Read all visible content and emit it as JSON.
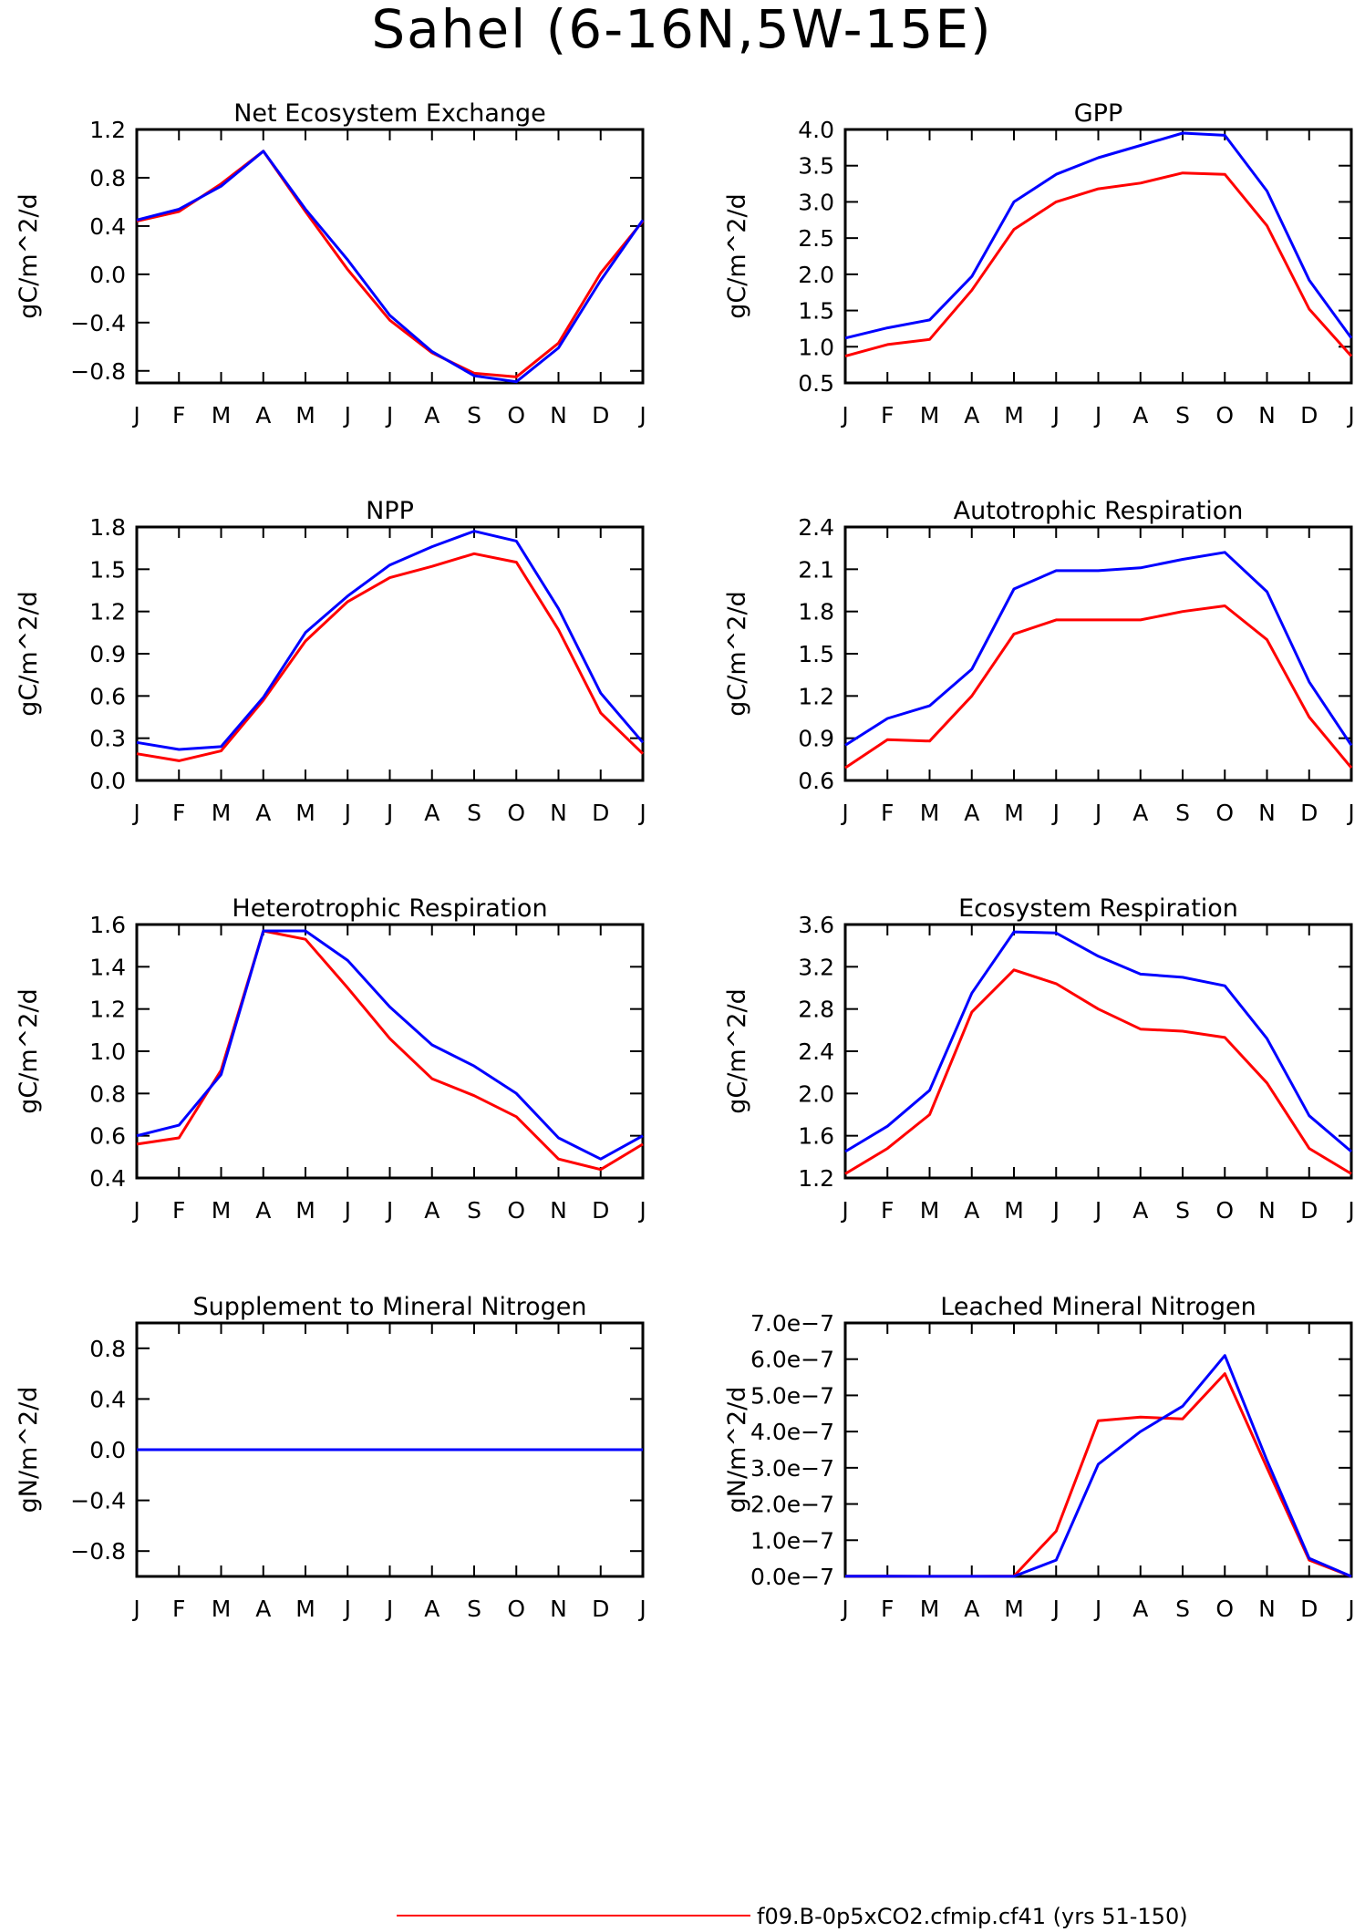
{
  "page_title": "Sahel (6-16N,5W-15E)",
  "legend": {
    "label": "f09.B-0p5xCO2.cfmip.cf41 (yrs 51-150)",
    "color": "#ff0000"
  },
  "series_colors": {
    "red": "#ff0000",
    "blue": "#0000ff"
  },
  "chart_data": [
    {
      "type": "line",
      "title": "Net Ecosystem Exchange",
      "ylabel": "gC/m^2/d",
      "categories": [
        "J",
        "F",
        "M",
        "A",
        "M",
        "J",
        "J",
        "A",
        "S",
        "O",
        "N",
        "D",
        "J"
      ],
      "yticks": [
        "-0.8",
        "-0.4",
        "0.0",
        "0.4",
        "0.8",
        "1.2"
      ],
      "ylim": [
        -0.9,
        1.2
      ],
      "series": [
        {
          "color": "red",
          "values": [
            0.44,
            0.52,
            0.75,
            1.02,
            0.52,
            0.04,
            -0.38,
            -0.65,
            -0.82,
            -0.85,
            -0.57,
            0.01,
            0.44
          ]
        },
        {
          "color": "blue",
          "values": [
            0.45,
            0.54,
            0.73,
            1.02,
            0.54,
            0.12,
            -0.34,
            -0.64,
            -0.84,
            -0.89,
            -0.61,
            -0.05,
            0.45
          ]
        }
      ]
    },
    {
      "type": "line",
      "title": "GPP",
      "ylabel": "gC/m^2/d",
      "categories": [
        "J",
        "F",
        "M",
        "A",
        "M",
        "J",
        "J",
        "A",
        "S",
        "O",
        "N",
        "D",
        "J"
      ],
      "yticks": [
        "0.5",
        "1.0",
        "1.5",
        "2.0",
        "2.5",
        "3.0",
        "3.5",
        "4.0"
      ],
      "ylim": [
        0.5,
        4.0
      ],
      "series": [
        {
          "color": "red",
          "values": [
            0.87,
            1.03,
            1.1,
            1.78,
            2.62,
            3.0,
            3.18,
            3.26,
            3.4,
            3.38,
            2.67,
            1.52,
            0.87
          ]
        },
        {
          "color": "blue",
          "values": [
            1.12,
            1.26,
            1.37,
            1.97,
            3.0,
            3.38,
            3.61,
            3.78,
            3.95,
            3.92,
            3.15,
            1.92,
            1.12
          ]
        }
      ]
    },
    {
      "type": "line",
      "title": "NPP",
      "ylabel": "gC/m^2/d",
      "categories": [
        "J",
        "F",
        "M",
        "A",
        "M",
        "J",
        "J",
        "A",
        "S",
        "O",
        "N",
        "D",
        "J"
      ],
      "yticks": [
        "0.0",
        "0.3",
        "0.6",
        "0.9",
        "1.2",
        "1.5",
        "1.8"
      ],
      "ylim": [
        0.0,
        1.8
      ],
      "series": [
        {
          "color": "red",
          "values": [
            0.19,
            0.14,
            0.21,
            0.57,
            0.99,
            1.27,
            1.44,
            1.52,
            1.61,
            1.55,
            1.07,
            0.48,
            0.19
          ]
        },
        {
          "color": "blue",
          "values": [
            0.27,
            0.22,
            0.24,
            0.59,
            1.05,
            1.31,
            1.53,
            1.66,
            1.77,
            1.7,
            1.22,
            0.62,
            0.27
          ]
        }
      ]
    },
    {
      "type": "line",
      "title": "Autotrophic Respiration",
      "ylabel": "gC/m^2/d",
      "categories": [
        "J",
        "F",
        "M",
        "A",
        "M",
        "J",
        "J",
        "A",
        "S",
        "O",
        "N",
        "D",
        "J"
      ],
      "yticks": [
        "0.6",
        "0.9",
        "1.2",
        "1.5",
        "1.8",
        "2.1",
        "2.4"
      ],
      "ylim": [
        0.6,
        2.4
      ],
      "series": [
        {
          "color": "red",
          "values": [
            0.69,
            0.89,
            0.88,
            1.2,
            1.64,
            1.74,
            1.74,
            1.74,
            1.8,
            1.84,
            1.6,
            1.05,
            0.69
          ]
        },
        {
          "color": "blue",
          "values": [
            0.85,
            1.04,
            1.13,
            1.39,
            1.96,
            2.09,
            2.09,
            2.11,
            2.17,
            2.22,
            1.94,
            1.3,
            0.85
          ]
        }
      ]
    },
    {
      "type": "line",
      "title": "Heterotrophic Respiration",
      "ylabel": "gC/m^2/d",
      "categories": [
        "J",
        "F",
        "M",
        "A",
        "M",
        "J",
        "J",
        "A",
        "S",
        "O",
        "N",
        "D",
        "J"
      ],
      "yticks": [
        "0.4",
        "0.6",
        "0.8",
        "1.0",
        "1.2",
        "1.4",
        "1.6"
      ],
      "ylim": [
        0.4,
        1.6
      ],
      "series": [
        {
          "color": "red",
          "values": [
            0.56,
            0.59,
            0.91,
            1.57,
            1.53,
            1.3,
            1.06,
            0.87,
            0.79,
            0.69,
            0.49,
            0.44,
            0.56
          ]
        },
        {
          "color": "blue",
          "values": [
            0.6,
            0.65,
            0.89,
            1.57,
            1.57,
            1.43,
            1.21,
            1.03,
            0.93,
            0.8,
            0.59,
            0.49,
            0.6
          ]
        }
      ]
    },
    {
      "type": "line",
      "title": "Ecosystem Respiration",
      "ylabel": "gC/m^2/d",
      "categories": [
        "J",
        "F",
        "M",
        "A",
        "M",
        "J",
        "J",
        "A",
        "S",
        "O",
        "N",
        "D",
        "J"
      ],
      "yticks": [
        "1.2",
        "1.6",
        "2.0",
        "2.4",
        "2.8",
        "3.2",
        "3.6"
      ],
      "ylim": [
        1.2,
        3.6
      ],
      "series": [
        {
          "color": "red",
          "values": [
            1.24,
            1.48,
            1.8,
            2.77,
            3.17,
            3.04,
            2.8,
            2.61,
            2.59,
            2.53,
            2.1,
            1.48,
            1.24
          ]
        },
        {
          "color": "blue",
          "values": [
            1.45,
            1.69,
            2.03,
            2.95,
            3.53,
            3.52,
            3.3,
            3.13,
            3.1,
            3.02,
            2.52,
            1.79,
            1.45
          ]
        }
      ]
    },
    {
      "type": "line",
      "title": "Supplement to Mineral Nitrogen",
      "ylabel": "gN/m^2/d",
      "categories": [
        "J",
        "F",
        "M",
        "A",
        "M",
        "J",
        "J",
        "A",
        "S",
        "O",
        "N",
        "D",
        "J"
      ],
      "yticks": [
        "-0.8",
        "-0.4",
        "0.0",
        "0.4",
        "0.8"
      ],
      "ylim": [
        -1.0,
        1.0
      ],
      "series": [
        {
          "color": "red",
          "values": [
            0,
            0,
            0,
            0,
            0,
            0,
            0,
            0,
            0,
            0,
            0,
            0,
            0
          ]
        },
        {
          "color": "blue",
          "values": [
            0,
            0,
            0,
            0,
            0,
            0,
            0,
            0,
            0,
            0,
            0,
            0,
            0
          ]
        }
      ]
    },
    {
      "type": "line",
      "title": "Leached Mineral Nitrogen",
      "ylabel": "gN/m^2/d",
      "categories": [
        "J",
        "F",
        "M",
        "A",
        "M",
        "J",
        "J",
        "A",
        "S",
        "O",
        "N",
        "D",
        "J"
      ],
      "yticks": [
        "0.0e-7",
        "1.0e-7",
        "2.0e-7",
        "3.0e-7",
        "4.0e-7",
        "5.0e-7",
        "6.0e-7",
        "7.0e-7"
      ],
      "ylim": [
        0,
        7e-07
      ],
      "series": [
        {
          "color": "red",
          "values": [
            6e-10,
            4e-10,
            2e-10,
            3e-10,
            1e-09,
            1.25e-07,
            4.3e-07,
            4.4e-07,
            4.35e-07,
            5.6e-07,
            3e-07,
            4.5e-08,
            0.0
          ]
        },
        {
          "color": "blue",
          "values": [
            8e-10,
            5e-10,
            2e-10,
            3e-10,
            2e-10,
            4.5e-08,
            3.1e-07,
            4e-07,
            4.7e-07,
            6.1e-07,
            3.2e-07,
            5e-08,
            0.0
          ]
        }
      ]
    }
  ]
}
